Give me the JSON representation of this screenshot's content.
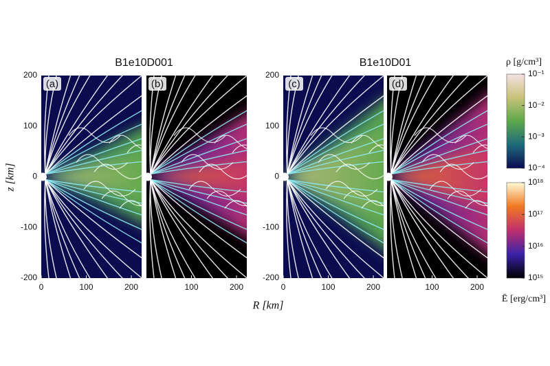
{
  "figure": {
    "xlabel": "R [km]",
    "ylabel": "z [km]"
  },
  "chart_data": [
    {
      "type": "image",
      "title": "B1e10D001",
      "xlim": [
        0,
        225
      ],
      "ylim": [
        -200,
        200
      ],
      "yticks": [
        -200,
        -100,
        0,
        100,
        200
      ],
      "panels": [
        {
          "label": "(a)",
          "field": "rho",
          "xticks": [
            0,
            100,
            200
          ]
        },
        {
          "label": "(b)",
          "field": "E",
          "xticks": [
            100,
            200
          ]
        }
      ]
    },
    {
      "type": "image",
      "title": "B1e10D01",
      "xlim": [
        0,
        225
      ],
      "ylim": [
        -200,
        200
      ],
      "yticks": [
        -200,
        -100,
        0,
        100,
        200
      ],
      "panels": [
        {
          "label": "(c)",
          "field": "rho",
          "xticks": [
            0,
            100,
            200
          ]
        },
        {
          "label": "(d)",
          "field": "E",
          "xticks": [
            100,
            200
          ]
        }
      ]
    }
  ],
  "colorbars": {
    "rho": {
      "label": "ρ [g/cm³]",
      "lim": [
        0.0001,
        0.1
      ],
      "log": true,
      "colors": [
        "#0b0b50",
        "#1e6a7c",
        "#5da84a",
        "#c8c27a",
        "#f3e2e2"
      ],
      "ticks": [
        {
          "value": 0.1,
          "label": "10⁻¹"
        },
        {
          "value": 0.01,
          "label": "10⁻²"
        },
        {
          "value": 0.001,
          "label": "10⁻³"
        },
        {
          "value": 0.0001,
          "label": "10⁻⁴"
        }
      ]
    },
    "E": {
      "label": "Ē [erg/cm³]",
      "lim": [
        1000000000000000.0,
        1e+18
      ],
      "log": true,
      "colors": [
        "#000000",
        "#3a22a8",
        "#c0306e",
        "#f07822",
        "#fffbd6"
      ],
      "ticks": [
        {
          "value": 1e+18,
          "label": "10¹⁸"
        },
        {
          "value": 1e+17,
          "label": "10¹⁷"
        },
        {
          "value": 1e+16,
          "label": "10¹⁶"
        },
        {
          "value": 1000000000000000.0,
          "label": "10¹⁵"
        }
      ]
    }
  }
}
